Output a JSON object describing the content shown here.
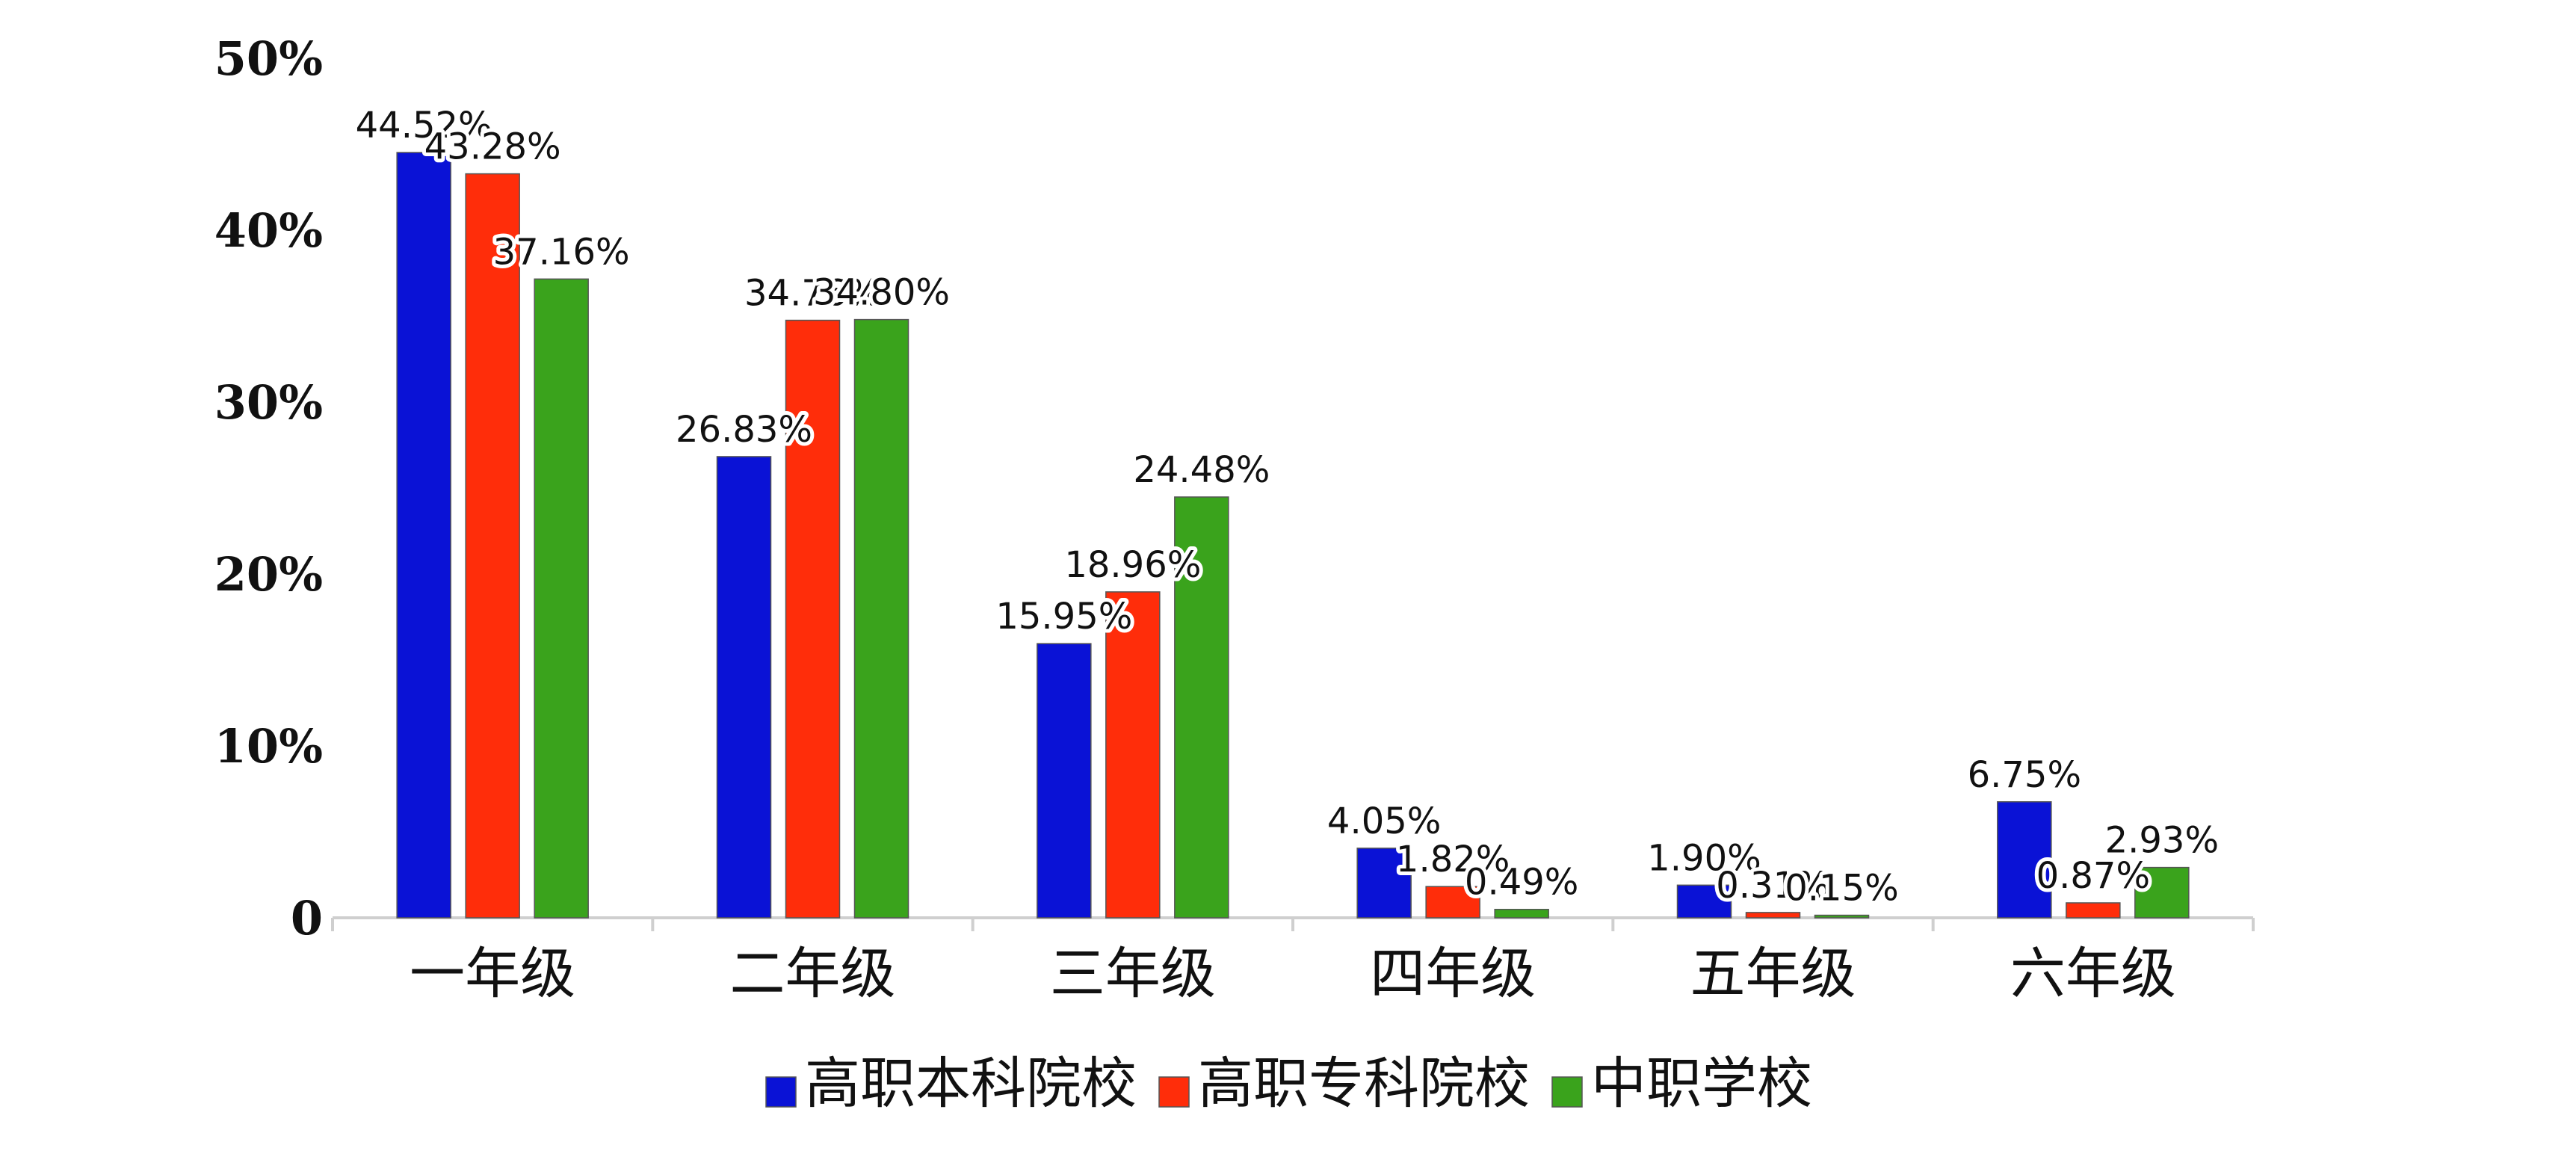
{
  "chart_data": {
    "type": "bar",
    "categories": [
      "一年级",
      "二年级",
      "三年级",
      "四年级",
      "五年级",
      "六年级"
    ],
    "series": [
      {
        "name": "高职本科院校",
        "color": "#0a12d6",
        "values": [
          44.52,
          26.83,
          15.95,
          4.05,
          1.9,
          6.75
        ],
        "labels": [
          "44.52%",
          "26.83%",
          "15.95%",
          "4.05%",
          "1.90%",
          "6.75%"
        ]
      },
      {
        "name": "高职专科院校",
        "color": "#ff2d0a",
        "values": [
          43.28,
          34.76,
          18.96,
          1.82,
          0.31,
          0.87
        ],
        "labels": [
          "43.28%",
          "34.76%",
          "18.96%",
          "1.82%",
          "0.31%",
          "0.87%"
        ]
      },
      {
        "name": "中职学校",
        "color": "#3aa31c",
        "values": [
          37.16,
          34.8,
          24.48,
          0.49,
          0.15,
          2.93
        ],
        "labels": [
          "37.16%",
          "34.80%",
          "24.48%",
          "0.49%",
          "0.15%",
          "2.93%"
        ]
      }
    ],
    "yticks": [
      0,
      10,
      20,
      30,
      40,
      50
    ],
    "ytick_labels": [
      "0",
      "10%",
      "20%",
      "30%",
      "40%",
      "50%"
    ],
    "ylim": [
      0,
      50
    ],
    "grid": false,
    "legend_position": "bottom-center",
    "title": "",
    "xlabel": "",
    "ylabel": ""
  }
}
